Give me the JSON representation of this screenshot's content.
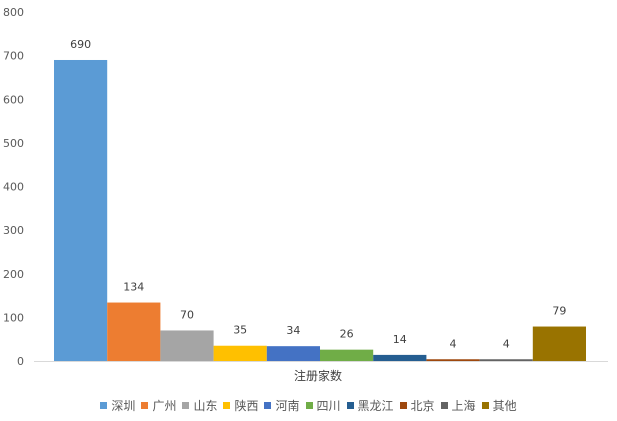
{
  "chart_data": {
    "type": "bar",
    "title": "",
    "xlabel": "注册家数",
    "ylabel": "",
    "ylim": [
      0,
      800
    ],
    "yticks": [
      0,
      100,
      200,
      300,
      400,
      500,
      600,
      700,
      800
    ],
    "grid": false,
    "legend_position": "bottom",
    "categories": [
      "注册家数"
    ],
    "series": [
      {
        "name": "深圳",
        "values": [
          690
        ],
        "color": "#5B9BD5"
      },
      {
        "name": "广州",
        "values": [
          134
        ],
        "color": "#ED7D31"
      },
      {
        "name": "山东",
        "values": [
          70
        ],
        "color": "#A5A5A5"
      },
      {
        "name": "陕西",
        "values": [
          35
        ],
        "color": "#FFC000"
      },
      {
        "name": "河南",
        "values": [
          34
        ],
        "color": "#4472C4"
      },
      {
        "name": "四川",
        "values": [
          26
        ],
        "color": "#70AD47"
      },
      {
        "name": "黑龙江",
        "values": [
          14
        ],
        "color": "#255E91"
      },
      {
        "name": "北京",
        "values": [
          4
        ],
        "color": "#9E480E"
      },
      {
        "name": "上海",
        "values": [
          4
        ],
        "color": "#636363"
      },
      {
        "name": "其他",
        "values": [
          79
        ],
        "color": "#997300"
      }
    ]
  }
}
